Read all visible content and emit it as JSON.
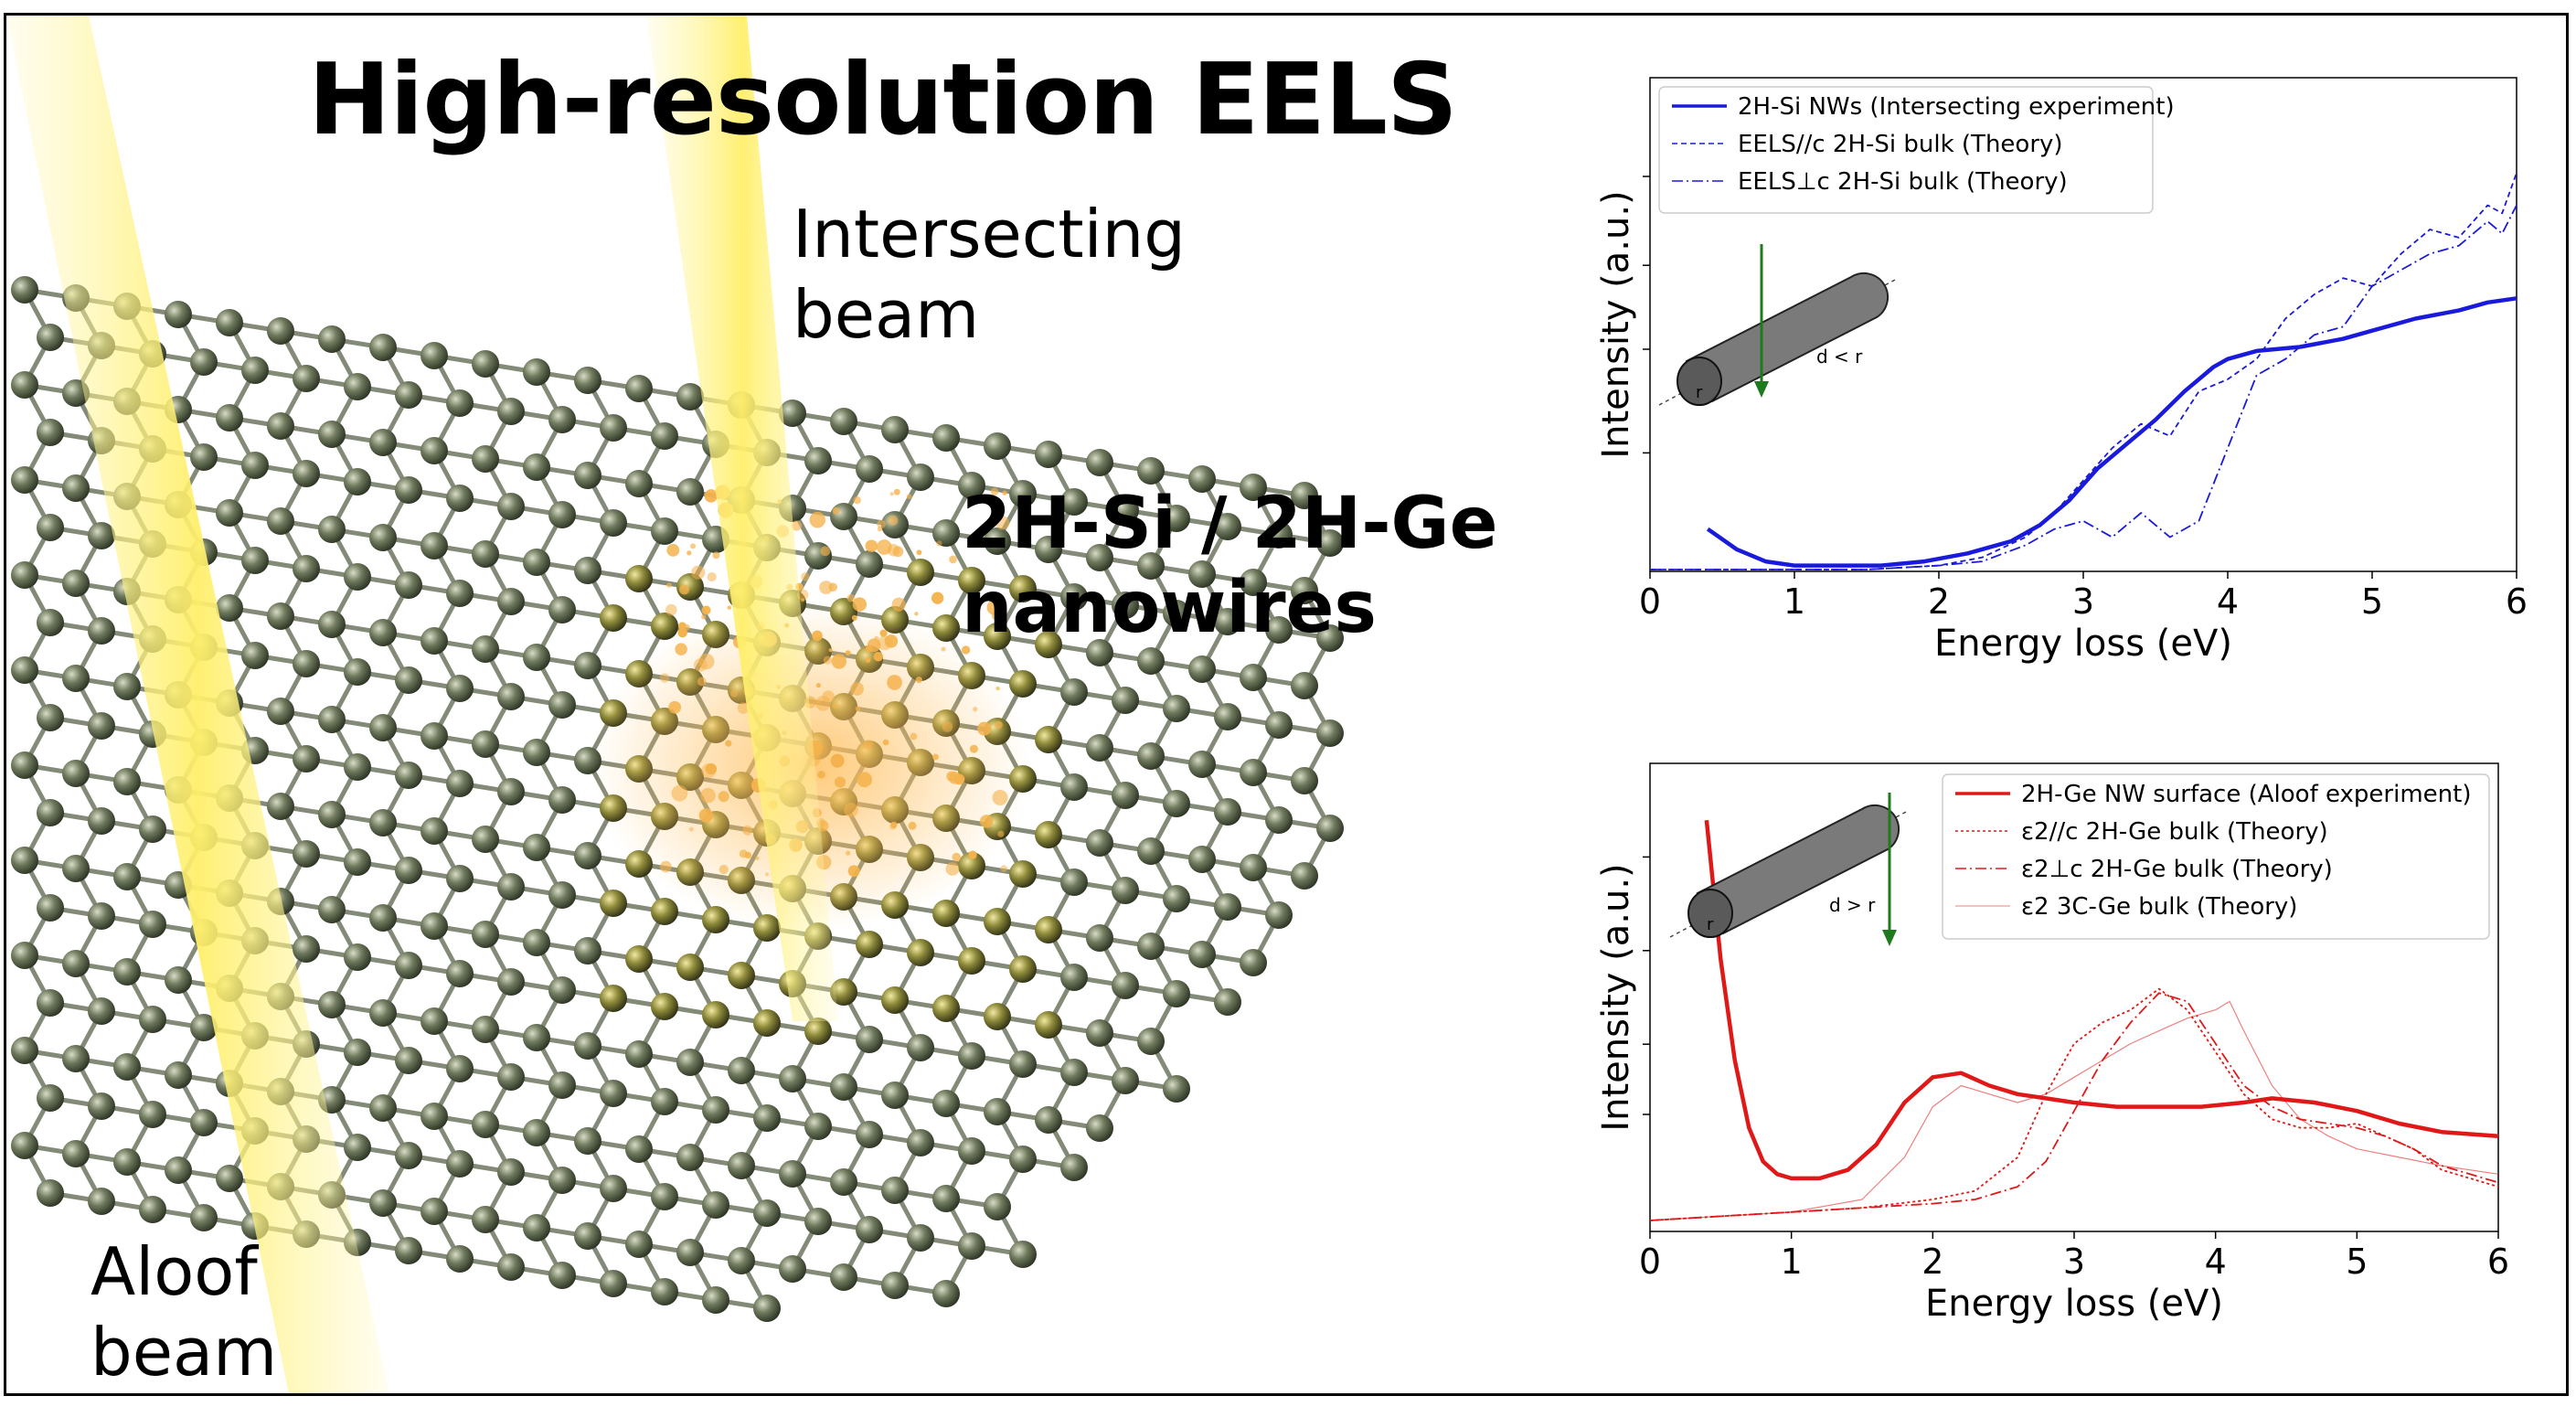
{
  "headline": {
    "title": "High-resolution EELS",
    "intersect_beam_line1": "Intersecting",
    "intersect_beam_line2": "beam",
    "aloof_beam_line1": "Aloof",
    "aloof_beam_line2": "beam",
    "material_line1": "2H-Si / 2H-Ge",
    "material_line2": "nanowires"
  },
  "colors": {
    "si_series": "#1a1adc",
    "ge_series": "#e01818",
    "beam": "#fff27a",
    "atom": "#5f6b4f",
    "arrow": "#1f7a1f"
  },
  "chart_data": [
    {
      "type": "line",
      "xlabel": "Energy loss (eV)",
      "ylabel": "Intensity (a.u.)",
      "xlim": [
        0,
        6
      ],
      "ylim": [
        0,
        1
      ],
      "xticks": [
        0,
        1,
        2,
        3,
        4,
        5,
        6
      ],
      "inset_annotation": "d < r",
      "inset_radius_label": "r",
      "legend_position": "top-left",
      "series": [
        {
          "name": "2H-Si NWs (Intersecting experiment)",
          "style": "solid",
          "x": [
            0.4,
            0.6,
            0.8,
            1.0,
            1.3,
            1.6,
            1.9,
            2.2,
            2.5,
            2.7,
            2.9,
            3.1,
            3.3,
            3.5,
            3.7,
            3.9,
            4.0,
            4.2,
            4.5,
            4.8,
            5.0,
            5.3,
            5.6,
            5.8,
            6.0
          ],
          "values": [
            0.1,
            0.05,
            0.02,
            0.01,
            0.01,
            0.01,
            0.02,
            0.04,
            0.07,
            0.11,
            0.17,
            0.25,
            0.31,
            0.37,
            0.44,
            0.5,
            0.52,
            0.54,
            0.55,
            0.57,
            0.59,
            0.62,
            0.64,
            0.66,
            0.67
          ]
        },
        {
          "name": "EELS//c 2H-Si bulk (Theory)",
          "style": "dashed",
          "x": [
            0,
            0.5,
            1.0,
            1.5,
            2.0,
            2.3,
            2.6,
            2.8,
            3.0,
            3.2,
            3.4,
            3.6,
            3.8,
            4.0,
            4.2,
            4.4,
            4.6,
            4.8,
            5.0,
            5.2,
            5.4,
            5.6,
            5.8,
            5.9,
            6.0
          ],
          "values": [
            0,
            0,
            0,
            0,
            0.01,
            0.03,
            0.08,
            0.14,
            0.22,
            0.3,
            0.36,
            0.33,
            0.44,
            0.47,
            0.52,
            0.62,
            0.68,
            0.72,
            0.7,
            0.78,
            0.84,
            0.82,
            0.9,
            0.88,
            0.98
          ]
        },
        {
          "name": "EELS⊥c 2H-Si bulk (Theory)",
          "style": "dashdot",
          "x": [
            0,
            0.5,
            1.0,
            1.5,
            2.0,
            2.3,
            2.6,
            2.8,
            3.0,
            3.2,
            3.4,
            3.6,
            3.8,
            4.0,
            4.2,
            4.4,
            4.6,
            4.8,
            5.0,
            5.2,
            5.4,
            5.6,
            5.8,
            5.9,
            6.0
          ],
          "values": [
            0,
            0,
            0,
            0,
            0.01,
            0.02,
            0.06,
            0.1,
            0.12,
            0.08,
            0.14,
            0.08,
            0.12,
            0.3,
            0.48,
            0.52,
            0.58,
            0.6,
            0.7,
            0.74,
            0.78,
            0.8,
            0.86,
            0.83,
            0.9
          ]
        }
      ]
    },
    {
      "type": "line",
      "xlabel": "Energy loss (eV)",
      "ylabel": "Intensity (a.u.)",
      "xlim": [
        0,
        6
      ],
      "ylim": [
        0,
        1
      ],
      "xticks": [
        0,
        1,
        2,
        3,
        4,
        5,
        6
      ],
      "inset_annotation": "d > r",
      "inset_radius_label": "r",
      "legend_position": "top-right",
      "series": [
        {
          "name": "2H-Ge NW surface (Aloof experiment)",
          "style": "solid",
          "x": [
            0.4,
            0.5,
            0.6,
            0.7,
            0.8,
            0.9,
            1.0,
            1.2,
            1.4,
            1.6,
            1.8,
            2.0,
            2.2,
            2.4,
            2.6,
            2.8,
            3.0,
            3.3,
            3.6,
            3.9,
            4.2,
            4.4,
            4.7,
            5.0,
            5.3,
            5.6,
            6.0
          ],
          "values": [
            0.95,
            0.62,
            0.38,
            0.22,
            0.14,
            0.11,
            0.1,
            0.1,
            0.12,
            0.18,
            0.28,
            0.34,
            0.35,
            0.32,
            0.3,
            0.29,
            0.28,
            0.27,
            0.27,
            0.27,
            0.28,
            0.29,
            0.28,
            0.26,
            0.23,
            0.21,
            0.2
          ]
        },
        {
          "name": "ε2//c 2H-Ge bulk (Theory)",
          "style": "dotted",
          "x": [
            0,
            0.5,
            1.0,
            1.5,
            2.0,
            2.3,
            2.6,
            2.8,
            3.0,
            3.2,
            3.4,
            3.6,
            3.8,
            4.0,
            4.2,
            4.4,
            4.6,
            4.8,
            5.0,
            5.2,
            5.4,
            5.6,
            6.0
          ],
          "values": [
            0,
            0.01,
            0.02,
            0.03,
            0.05,
            0.07,
            0.15,
            0.3,
            0.42,
            0.47,
            0.5,
            0.55,
            0.5,
            0.4,
            0.3,
            0.24,
            0.22,
            0.22,
            0.23,
            0.2,
            0.17,
            0.12,
            0.08
          ]
        },
        {
          "name": "ε2⊥c 2H-Ge bulk (Theory)",
          "style": "dashdot",
          "x": [
            0,
            0.5,
            1.0,
            1.5,
            2.0,
            2.3,
            2.6,
            2.8,
            3.0,
            3.2,
            3.4,
            3.6,
            3.8,
            4.0,
            4.2,
            4.4,
            4.6,
            4.8,
            5.0,
            5.2,
            5.4,
            5.6,
            6.0
          ],
          "values": [
            0,
            0.01,
            0.02,
            0.03,
            0.04,
            0.05,
            0.08,
            0.14,
            0.26,
            0.38,
            0.47,
            0.54,
            0.52,
            0.42,
            0.32,
            0.27,
            0.24,
            0.23,
            0.22,
            0.2,
            0.17,
            0.13,
            0.09
          ]
        },
        {
          "name": "ε2 3C-Ge bulk (Theory)",
          "style": "thin",
          "x": [
            0,
            0.5,
            1.0,
            1.5,
            1.8,
            2.0,
            2.2,
            2.4,
            2.6,
            2.8,
            3.0,
            3.2,
            3.4,
            3.6,
            3.8,
            4.0,
            4.1,
            4.2,
            4.4,
            4.6,
            4.8,
            5.0,
            5.3,
            5.6,
            6.0
          ],
          "values": [
            0,
            0.01,
            0.02,
            0.05,
            0.15,
            0.27,
            0.32,
            0.3,
            0.28,
            0.3,
            0.34,
            0.38,
            0.42,
            0.45,
            0.48,
            0.5,
            0.52,
            0.45,
            0.32,
            0.24,
            0.2,
            0.17,
            0.15,
            0.13,
            0.11
          ]
        }
      ]
    }
  ]
}
